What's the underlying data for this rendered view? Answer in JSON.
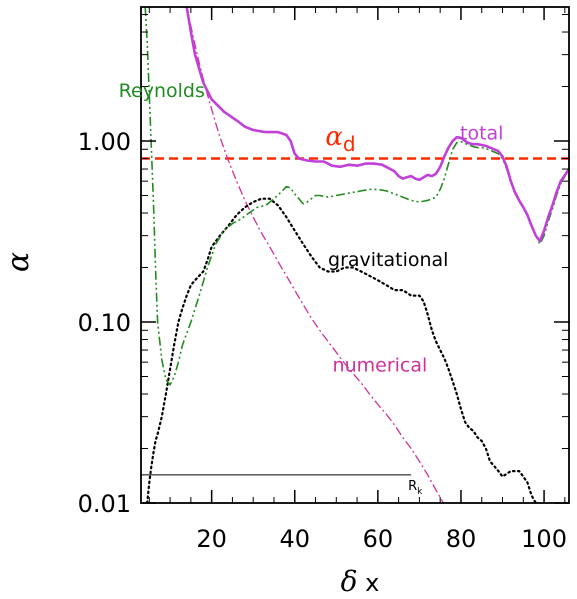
{
  "chart_data": {
    "type": "line",
    "title": "",
    "xlabel": "δ x",
    "ylabel": "α",
    "xlim": [
      3,
      106
    ],
    "ylim": [
      0.01,
      5.5
    ],
    "yscale": "log",
    "grid": false,
    "x_ticks": [
      20,
      40,
      60,
      80,
      100
    ],
    "x_tick_labels": [
      "20",
      "40",
      "60",
      "80",
      "100"
    ],
    "y_ticks": [
      0.01,
      0.1,
      1.0
    ],
    "y_tick_labels": [
      "0.01",
      "0.10",
      "1.00"
    ],
    "series": [
      {
        "name": "total",
        "color": "#c040d8",
        "style": "solid-thick",
        "points": [
          [
            14,
            5.5
          ],
          [
            15,
            4.0
          ],
          [
            16,
            3.0
          ],
          [
            18,
            2.1
          ],
          [
            20,
            1.7
          ],
          [
            23,
            1.45
          ],
          [
            26,
            1.3
          ],
          [
            28,
            1.2
          ],
          [
            30,
            1.15
          ],
          [
            33,
            1.12
          ],
          [
            36,
            1.12
          ],
          [
            38,
            1.08
          ],
          [
            39,
            1.0
          ],
          [
            40,
            0.85
          ],
          [
            41,
            0.8
          ],
          [
            43,
            0.78
          ],
          [
            45,
            0.77
          ],
          [
            47,
            0.77
          ],
          [
            49,
            0.73
          ],
          [
            51,
            0.72
          ],
          [
            53,
            0.74
          ],
          [
            55,
            0.73
          ],
          [
            57,
            0.75
          ],
          [
            59,
            0.75
          ],
          [
            61,
            0.74
          ],
          [
            63,
            0.7
          ],
          [
            64,
            0.68
          ],
          [
            65,
            0.64
          ],
          [
            66,
            0.62
          ],
          [
            67,
            0.63
          ],
          [
            68,
            0.64
          ],
          [
            69,
            0.62
          ],
          [
            70,
            0.61
          ],
          [
            71,
            0.63
          ],
          [
            72,
            0.65
          ],
          [
            73,
            0.64
          ],
          [
            74,
            0.66
          ],
          [
            75,
            0.72
          ],
          [
            76,
            0.82
          ],
          [
            77,
            0.92
          ],
          [
            78,
            1.0
          ],
          [
            79,
            1.05
          ],
          [
            80,
            1.04
          ],
          [
            81,
            1.0
          ],
          [
            82,
            0.97
          ],
          [
            83,
            0.96
          ],
          [
            84,
            0.96
          ],
          [
            85,
            0.95
          ],
          [
            86,
            0.94
          ],
          [
            87,
            0.92
          ],
          [
            88,
            0.9
          ],
          [
            89,
            0.88
          ],
          [
            90,
            0.82
          ],
          [
            91,
            0.72
          ],
          [
            92,
            0.6
          ],
          [
            93,
            0.52
          ],
          [
            94,
            0.47
          ],
          [
            95,
            0.43
          ],
          [
            96,
            0.39
          ],
          [
            97,
            0.34
          ],
          [
            98,
            0.3
          ],
          [
            99,
            0.28
          ],
          [
            100,
            0.32
          ],
          [
            101,
            0.38
          ],
          [
            102,
            0.44
          ],
          [
            103,
            0.52
          ],
          [
            104,
            0.6
          ],
          [
            106,
            0.7
          ]
        ]
      },
      {
        "name": "Reynolds",
        "color": "#228b22",
        "style": "dash-dot-dot",
        "points": [
          [
            4,
            5.5
          ],
          [
            4.5,
            3.5
          ],
          [
            5,
            1.8
          ],
          [
            5.5,
            0.9
          ],
          [
            6,
            0.45
          ],
          [
            6.5,
            0.2
          ],
          [
            7,
            0.1
          ],
          [
            8,
            0.062
          ],
          [
            9,
            0.048
          ],
          [
            10,
            0.045
          ],
          [
            11,
            0.05
          ],
          [
            12,
            0.06
          ],
          [
            13,
            0.075
          ],
          [
            15,
            0.1
          ],
          [
            17,
            0.14
          ],
          [
            19,
            0.2
          ],
          [
            21,
            0.27
          ],
          [
            23,
            0.32
          ],
          [
            25,
            0.35
          ],
          [
            27,
            0.37
          ],
          [
            29,
            0.4
          ],
          [
            31,
            0.43
          ],
          [
            33,
            0.44
          ],
          [
            35,
            0.48
          ],
          [
            37,
            0.53
          ],
          [
            38,
            0.56
          ],
          [
            39,
            0.55
          ],
          [
            40,
            0.51
          ],
          [
            41,
            0.48
          ],
          [
            42,
            0.45
          ],
          [
            43,
            0.46
          ],
          [
            44,
            0.48
          ],
          [
            45,
            0.5
          ],
          [
            46,
            0.5
          ],
          [
            48,
            0.49
          ],
          [
            50,
            0.5
          ],
          [
            52,
            0.51
          ],
          [
            54,
            0.52
          ],
          [
            56,
            0.53
          ],
          [
            58,
            0.54
          ],
          [
            60,
            0.54
          ],
          [
            62,
            0.53
          ],
          [
            64,
            0.51
          ],
          [
            66,
            0.49
          ],
          [
            68,
            0.47
          ],
          [
            70,
            0.46
          ],
          [
            72,
            0.47
          ],
          [
            74,
            0.49
          ],
          [
            75,
            0.54
          ],
          [
            76,
            0.62
          ],
          [
            77,
            0.75
          ],
          [
            78,
            0.9
          ],
          [
            79,
            0.98
          ],
          [
            80,
            0.99
          ],
          [
            81,
            0.97
          ],
          [
            82,
            0.95
          ],
          [
            83,
            0.93
          ],
          [
            84,
            0.92
          ],
          [
            85,
            0.92
          ],
          [
            86,
            0.91
          ],
          [
            87,
            0.89
          ],
          [
            88,
            0.87
          ],
          [
            89,
            0.85
          ],
          [
            90,
            0.8
          ],
          [
            91,
            0.7
          ],
          [
            92,
            0.6
          ],
          [
            93,
            0.52
          ],
          [
            94,
            0.47
          ],
          [
            95,
            0.43
          ],
          [
            96,
            0.39
          ],
          [
            97,
            0.34
          ],
          [
            98,
            0.3
          ],
          [
            99,
            0.27
          ],
          [
            100,
            0.3
          ],
          [
            101,
            0.36
          ],
          [
            102,
            0.42
          ],
          [
            103,
            0.5
          ],
          [
            104,
            0.58
          ],
          [
            106,
            0.7
          ]
        ]
      },
      {
        "name": "gravitational",
        "color": "#000000",
        "style": "dotted",
        "points": [
          [
            4.5,
            0.01
          ],
          [
            5,
            0.013
          ],
          [
            5.5,
            0.016
          ],
          [
            6,
            0.019
          ],
          [
            6.5,
            0.022
          ],
          [
            7,
            0.024
          ],
          [
            8,
            0.03
          ],
          [
            9,
            0.04
          ],
          [
            10,
            0.055
          ],
          [
            11,
            0.075
          ],
          [
            12,
            0.1
          ],
          [
            13,
            0.12
          ],
          [
            14,
            0.14
          ],
          [
            15,
            0.16
          ],
          [
            16,
            0.17
          ],
          [
            17,
            0.18
          ],
          [
            18,
            0.19
          ],
          [
            19,
            0.22
          ],
          [
            20,
            0.26
          ],
          [
            22,
            0.3
          ],
          [
            24,
            0.34
          ],
          [
            26,
            0.39
          ],
          [
            28,
            0.43
          ],
          [
            30,
            0.46
          ],
          [
            32,
            0.48
          ],
          [
            34,
            0.48
          ],
          [
            36,
            0.44
          ],
          [
            38,
            0.38
          ],
          [
            40,
            0.32
          ],
          [
            42,
            0.27
          ],
          [
            44,
            0.23
          ],
          [
            46,
            0.2
          ],
          [
            48,
            0.19
          ],
          [
            50,
            0.19
          ],
          [
            52,
            0.2
          ],
          [
            54,
            0.2
          ],
          [
            56,
            0.19
          ],
          [
            58,
            0.18
          ],
          [
            60,
            0.17
          ],
          [
            62,
            0.16
          ],
          [
            64,
            0.15
          ],
          [
            66,
            0.15
          ],
          [
            68,
            0.14
          ],
          [
            70,
            0.14
          ],
          [
            71,
            0.13
          ],
          [
            72,
            0.11
          ],
          [
            73,
            0.09
          ],
          [
            74,
            0.078
          ],
          [
            75,
            0.07
          ],
          [
            76,
            0.063
          ],
          [
            77,
            0.055
          ],
          [
            78,
            0.047
          ],
          [
            79,
            0.04
          ],
          [
            80,
            0.033
          ],
          [
            81,
            0.028
          ],
          [
            82,
            0.026
          ],
          [
            83,
            0.025
          ],
          [
            84,
            0.023
          ],
          [
            85,
            0.022
          ],
          [
            86,
            0.02
          ],
          [
            87,
            0.017
          ],
          [
            88,
            0.016
          ],
          [
            89,
            0.015
          ],
          [
            90,
            0.014
          ],
          [
            91,
            0.0145
          ],
          [
            92,
            0.015
          ],
          [
            93,
            0.015
          ],
          [
            94,
            0.015
          ],
          [
            95,
            0.014
          ],
          [
            96,
            0.013
          ],
          [
            97,
            0.011
          ],
          [
            98,
            0.01
          ]
        ]
      },
      {
        "name": "numerical",
        "color": "#d0309a",
        "style": "dash-dot",
        "points": [
          [
            14,
            5.5
          ],
          [
            15,
            4.3
          ],
          [
            16,
            3.4
          ],
          [
            17,
            2.7
          ],
          [
            18,
            2.2
          ],
          [
            19,
            1.8
          ],
          [
            20,
            1.5
          ],
          [
            21,
            1.25
          ],
          [
            22,
            1.05
          ],
          [
            24,
            0.78
          ],
          [
            26,
            0.6
          ],
          [
            28,
            0.47
          ],
          [
            30,
            0.38
          ],
          [
            32,
            0.31
          ],
          [
            34,
            0.26
          ],
          [
            36,
            0.215
          ],
          [
            38,
            0.18
          ],
          [
            40,
            0.15
          ],
          [
            42,
            0.125
          ],
          [
            44,
            0.105
          ],
          [
            46,
            0.09
          ],
          [
            48,
            0.078
          ],
          [
            50,
            0.068
          ],
          [
            52,
            0.059
          ],
          [
            54,
            0.052
          ],
          [
            56,
            0.046
          ],
          [
            58,
            0.04
          ],
          [
            60,
            0.035
          ],
          [
            62,
            0.031
          ],
          [
            64,
            0.027
          ],
          [
            66,
            0.023
          ],
          [
            68,
            0.02
          ],
          [
            70,
            0.017
          ],
          [
            72,
            0.0143
          ],
          [
            74,
            0.0118
          ],
          [
            76,
            0.0098
          ]
        ]
      },
      {
        "name": "alpha_d",
        "color": "#ff2a00",
        "style": "dashed",
        "points": [
          [
            3,
            0.8
          ],
          [
            106,
            0.8
          ]
        ]
      }
    ],
    "annotations": [
      {
        "text": "Reynolds",
        "x": 8,
        "y": 1.75,
        "color": "#228b22"
      },
      {
        "text": "total",
        "x": 85,
        "y": 1.02,
        "color": "#c040d8"
      },
      {
        "text": "gravitational",
        "x": 62.5,
        "y": 0.204,
        "color": "#000000"
      },
      {
        "text": "numerical",
        "x": 60.5,
        "y": 0.0533,
        "color": "#d0309a"
      },
      {
        "text": "α",
        "subscript": "d",
        "x": 51,
        "y": 0.95,
        "color": "#ff2a00"
      },
      {
        "text": "R",
        "subscript": "k",
        "x": 69,
        "y": 0.0118,
        "color": "#000000"
      }
    ],
    "range_marker": {
      "x_start": 3,
      "x_end": 68,
      "y": 0.0143,
      "label": "Rk"
    }
  }
}
